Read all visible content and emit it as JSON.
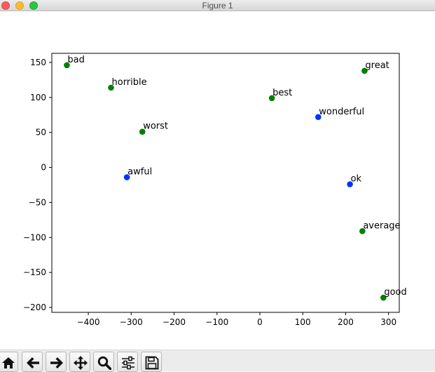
{
  "window": {
    "title": "Figure 1"
  },
  "toolbar": {
    "buttons": [
      {
        "name": "home-button",
        "icon": "home-icon"
      },
      {
        "name": "back-button",
        "icon": "arrow-left-icon"
      },
      {
        "name": "forward-button",
        "icon": "arrow-right-icon"
      },
      {
        "name": "pan-button",
        "icon": "move-icon"
      },
      {
        "name": "zoom-button",
        "icon": "magnifier-icon"
      },
      {
        "name": "configure-subplots-button",
        "icon": "sliders-icon"
      },
      {
        "name": "save-button",
        "icon": "floppy-disk-icon"
      }
    ]
  },
  "chart_data": {
    "type": "scatter",
    "title": "",
    "xlabel": "",
    "ylabel": "",
    "xlim": [
      -485,
      325
    ],
    "ylim": [
      -207,
      163
    ],
    "xticks": [
      -400,
      -300,
      -200,
      -100,
      0,
      100,
      200,
      300
    ],
    "xtick_labels": [
      "−400",
      "−300",
      "−200",
      "−100",
      "0",
      "100",
      "200",
      "300"
    ],
    "yticks": [
      -200,
      -150,
      -100,
      -50,
      0,
      50,
      100,
      150
    ],
    "ytick_labels": [
      "−200",
      "−150",
      "−100",
      "−50",
      "0",
      "50",
      "100",
      "150"
    ],
    "grid": false,
    "colors": {
      "green": "#008000",
      "blue": "#0033ff"
    },
    "points": [
      {
        "label": "bad",
        "x": -450,
        "y": 146,
        "color": "green"
      },
      {
        "label": "horrible",
        "x": -347,
        "y": 114,
        "color": "green"
      },
      {
        "label": "worst",
        "x": -274,
        "y": 51,
        "color": "green"
      },
      {
        "label": "awful",
        "x": -310,
        "y": -14,
        "color": "blue"
      },
      {
        "label": "best",
        "x": 28,
        "y": 99,
        "color": "green"
      },
      {
        "label": "wonderful",
        "x": 136,
        "y": 72,
        "color": "blue"
      },
      {
        "label": "great",
        "x": 244,
        "y": 138,
        "color": "green"
      },
      {
        "label": "ok",
        "x": 210,
        "y": -24,
        "color": "blue"
      },
      {
        "label": "average",
        "x": 239,
        "y": -91,
        "color": "green"
      },
      {
        "label": "good",
        "x": 288,
        "y": -186,
        "color": "green"
      }
    ]
  }
}
